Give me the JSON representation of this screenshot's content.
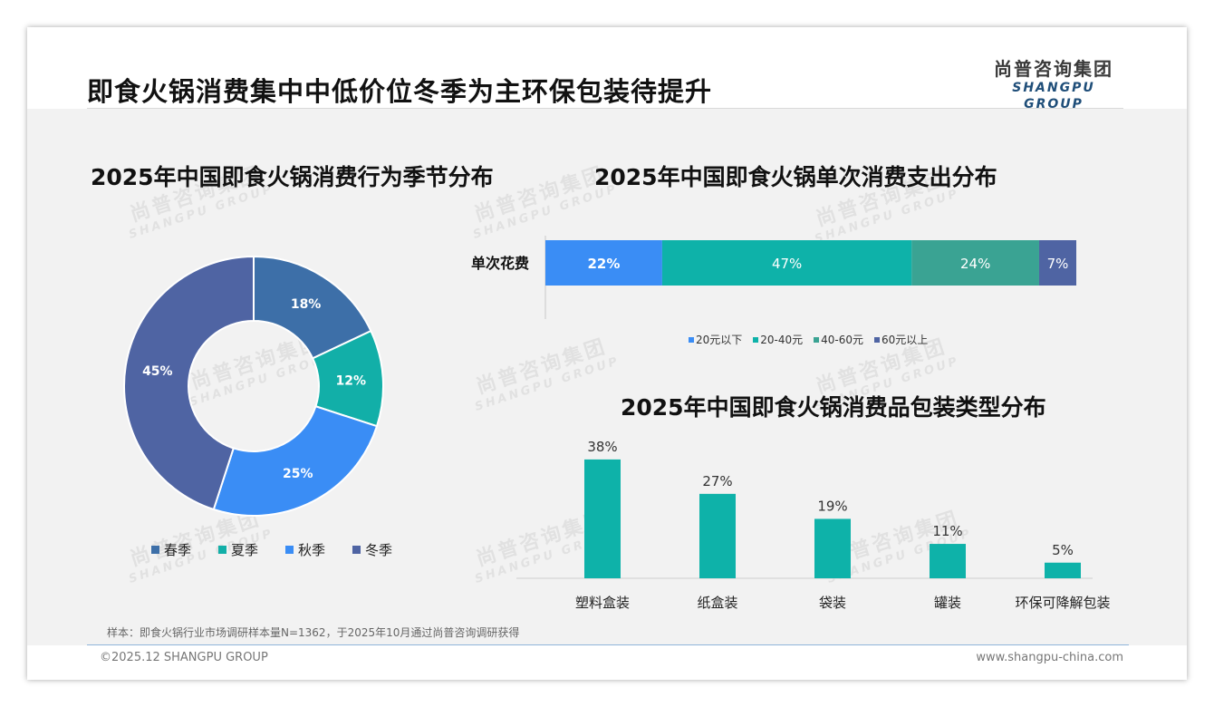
{
  "page": {
    "title": "即食火锅消费集中中低价位冬季为主环保包装待提升",
    "logo_cn": "尚普咨询集团",
    "logo_en": "SHANGPU GROUP",
    "watermark_cn": "尚普咨询集团",
    "watermark_en": "SHANGPU GROUP",
    "footnote": "样本：即食火锅行业市场调研样本量N=1362，于2025年10月通过尚普咨询调研获得",
    "copyright": "©2025.12 SHANGPU GROUP",
    "website": "www.shangpu-china.com"
  },
  "chart_data": [
    {
      "type": "pie",
      "title": "2025年中国即食火锅消费行为季节分布",
      "categories": [
        "春季",
        "夏季",
        "秋季",
        "冬季"
      ],
      "values": [
        18,
        12,
        25,
        45
      ],
      "labels": [
        "18%",
        "12%",
        "25%",
        "45%"
      ],
      "colors": [
        "#3d6fa8",
        "#12afa8",
        "#3a8df5",
        "#4f64a3"
      ],
      "donut": true,
      "legend": "bottom"
    },
    {
      "type": "bar",
      "orientation": "horizontal",
      "stacked": true,
      "title": "2025年中国即食火锅单次消费支出分布",
      "categories": [
        "单次花费"
      ],
      "series": [
        {
          "name": "20元以下",
          "values": [
            22
          ],
          "label": "22%",
          "color": "#3a8df5"
        },
        {
          "name": "20-40元",
          "values": [
            47
          ],
          "label": "47%",
          "color": "#0eb2a9"
        },
        {
          "name": "40-60元",
          "values": [
            24
          ],
          "label": "24%",
          "color": "#3aa393"
        },
        {
          "name": "60元以上",
          "values": [
            7
          ],
          "label": "7%",
          "color": "#4f64a3"
        }
      ],
      "legend": "bottom"
    },
    {
      "type": "bar",
      "title": "2025年中国即食火锅消费品包装类型分布",
      "categories": [
        "塑料盒装",
        "纸盒装",
        "袋装",
        "罐装",
        "环保可降解包装"
      ],
      "values": [
        38,
        27,
        19,
        11,
        5
      ],
      "labels": [
        "38%",
        "27%",
        "19%",
        "11%",
        "5%"
      ],
      "color": "#0eb2a9",
      "ylim": [
        0,
        40
      ]
    }
  ]
}
